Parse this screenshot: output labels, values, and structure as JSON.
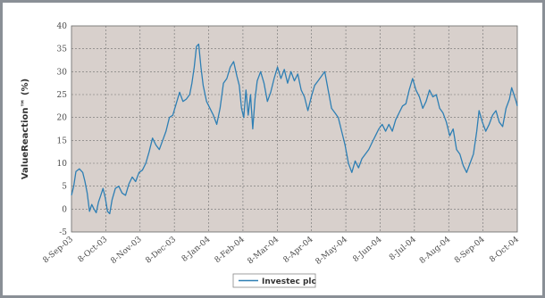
{
  "chart_data": {
    "type": "line",
    "ylabel": "ValueReaction™ (%)",
    "xlabel": "",
    "ylim": [
      -5,
      40
    ],
    "yticks": [
      -5,
      0,
      5,
      10,
      15,
      20,
      25,
      30,
      35,
      40
    ],
    "xlim": [
      "2003-09-08",
      "2004-10-08"
    ],
    "xtick_labels": [
      "8-Sep-03",
      "8-Oct-03",
      "8-Nov-03",
      "8-Dec-03",
      "8-Jan-04",
      "8-Feb-04",
      "8-Mar-04",
      "8-Apr-04",
      "8-May-04",
      "8-Jun-04",
      "8-Jul-04",
      "8-Aug-04",
      "8-Sep-04",
      "8-Oct-04"
    ],
    "grid": true,
    "plot_background": "#d8d0cc",
    "legend_position": "bottom-center",
    "series": [
      {
        "name": "Investec plc",
        "color": "#2e7fb4",
        "points": [
          [
            "2003-09-08",
            3.0
          ],
          [
            "2003-09-10",
            5.0
          ],
          [
            "2003-09-12",
            8.2
          ],
          [
            "2003-09-15",
            8.8
          ],
          [
            "2003-09-18",
            8.0
          ],
          [
            "2003-09-20",
            6.0
          ],
          [
            "2003-09-22",
            3.5
          ],
          [
            "2003-09-24",
            -0.5
          ],
          [
            "2003-09-26",
            1.0
          ],
          [
            "2003-09-28",
            0.0
          ],
          [
            "2003-09-30",
            -0.8
          ],
          [
            "2003-10-02",
            1.5
          ],
          [
            "2003-10-04",
            3.0
          ],
          [
            "2003-10-06",
            4.5
          ],
          [
            "2003-10-08",
            2.5
          ],
          [
            "2003-10-10",
            -0.5
          ],
          [
            "2003-10-12",
            -1.0
          ],
          [
            "2003-10-14",
            2.0
          ],
          [
            "2003-10-17",
            4.5
          ],
          [
            "2003-10-20",
            5.0
          ],
          [
            "2003-10-23",
            3.5
          ],
          [
            "2003-10-26",
            3.0
          ],
          [
            "2003-10-29",
            5.5
          ],
          [
            "2003-11-01",
            7.0
          ],
          [
            "2003-11-04",
            6.0
          ],
          [
            "2003-11-07",
            8.0
          ],
          [
            "2003-11-10",
            8.5
          ],
          [
            "2003-11-13",
            10.0
          ],
          [
            "2003-11-16",
            12.5
          ],
          [
            "2003-11-19",
            15.5
          ],
          [
            "2003-11-22",
            14.0
          ],
          [
            "2003-11-25",
            13.0
          ],
          [
            "2003-11-28",
            15.0
          ],
          [
            "2003-12-01",
            17.0
          ],
          [
            "2003-12-04",
            20.0
          ],
          [
            "2003-12-07",
            20.5
          ],
          [
            "2003-12-10",
            23.0
          ],
          [
            "2003-12-13",
            25.5
          ],
          [
            "2003-12-16",
            23.5
          ],
          [
            "2003-12-19",
            24.0
          ],
          [
            "2003-12-22",
            25.0
          ],
          [
            "2003-12-24",
            27.5
          ],
          [
            "2003-12-26",
            31.0
          ],
          [
            "2003-12-28",
            35.5
          ],
          [
            "2003-12-30",
            36.0
          ],
          [
            "2004-01-01",
            31.0
          ],
          [
            "2004-01-03",
            27.0
          ],
          [
            "2004-01-06",
            23.5
          ],
          [
            "2004-01-09",
            22.0
          ],
          [
            "2004-01-12",
            20.5
          ],
          [
            "2004-01-15",
            18.5
          ],
          [
            "2004-01-18",
            22.0
          ],
          [
            "2004-01-21",
            27.5
          ],
          [
            "2004-01-24",
            28.5
          ],
          [
            "2004-01-27",
            31.0
          ],
          [
            "2004-01-30",
            32.2
          ],
          [
            "2004-02-02",
            29.0
          ],
          [
            "2004-02-04",
            27.0
          ],
          [
            "2004-02-06",
            22.0
          ],
          [
            "2004-02-08",
            20.0
          ],
          [
            "2004-02-10",
            26.0
          ],
          [
            "2004-02-12",
            20.5
          ],
          [
            "2004-02-14",
            25.0
          ],
          [
            "2004-02-16",
            17.5
          ],
          [
            "2004-02-18",
            24.0
          ],
          [
            "2004-02-20",
            28.0
          ],
          [
            "2004-02-23",
            30.0
          ],
          [
            "2004-02-26",
            27.5
          ],
          [
            "2004-02-29",
            23.5
          ],
          [
            "2004-03-03",
            25.5
          ],
          [
            "2004-03-06",
            28.5
          ],
          [
            "2004-03-09",
            31.0
          ],
          [
            "2004-03-12",
            28.5
          ],
          [
            "2004-03-15",
            30.5
          ],
          [
            "2004-03-18",
            27.5
          ],
          [
            "2004-03-21",
            30.0
          ],
          [
            "2004-03-24",
            28.0
          ],
          [
            "2004-03-27",
            29.5
          ],
          [
            "2004-03-30",
            26.0
          ],
          [
            "2004-04-02",
            24.5
          ],
          [
            "2004-04-05",
            21.5
          ],
          [
            "2004-04-08",
            24.5
          ],
          [
            "2004-04-11",
            27.0
          ],
          [
            "2004-04-14",
            28.0
          ],
          [
            "2004-04-17",
            29.0
          ],
          [
            "2004-04-20",
            30.0
          ],
          [
            "2004-04-23",
            26.0
          ],
          [
            "2004-04-26",
            22.0
          ],
          [
            "2004-04-29",
            21.0
          ],
          [
            "2004-05-02",
            20.0
          ],
          [
            "2004-05-05",
            17.0
          ],
          [
            "2004-05-08",
            14.0
          ],
          [
            "2004-05-11",
            10.0
          ],
          [
            "2004-05-14",
            8.0
          ],
          [
            "2004-05-17",
            10.5
          ],
          [
            "2004-05-20",
            9.0
          ],
          [
            "2004-05-23",
            11.0
          ],
          [
            "2004-05-26",
            12.0
          ],
          [
            "2004-05-29",
            13.0
          ],
          [
            "2004-06-01",
            14.5
          ],
          [
            "2004-06-04",
            16.0
          ],
          [
            "2004-06-07",
            17.5
          ],
          [
            "2004-06-10",
            18.5
          ],
          [
            "2004-06-13",
            17.0
          ],
          [
            "2004-06-16",
            18.5
          ],
          [
            "2004-06-19",
            17.0
          ],
          [
            "2004-06-22",
            19.5
          ],
          [
            "2004-06-25",
            21.0
          ],
          [
            "2004-06-28",
            22.5
          ],
          [
            "2004-07-01",
            23.0
          ],
          [
            "2004-07-04",
            26.0
          ],
          [
            "2004-07-07",
            28.5
          ],
          [
            "2004-07-10",
            26.0
          ],
          [
            "2004-07-13",
            24.5
          ],
          [
            "2004-07-16",
            22.0
          ],
          [
            "2004-07-19",
            23.5
          ],
          [
            "2004-07-22",
            26.0
          ],
          [
            "2004-07-25",
            24.5
          ],
          [
            "2004-07-28",
            25.0
          ],
          [
            "2004-07-31",
            22.0
          ],
          [
            "2004-08-03",
            21.0
          ],
          [
            "2004-08-06",
            19.0
          ],
          [
            "2004-08-09",
            16.0
          ],
          [
            "2004-08-12",
            17.5
          ],
          [
            "2004-08-15",
            13.0
          ],
          [
            "2004-08-18",
            12.0
          ],
          [
            "2004-08-21",
            9.5
          ],
          [
            "2004-08-24",
            8.0
          ],
          [
            "2004-08-27",
            10.0
          ],
          [
            "2004-08-30",
            12.0
          ],
          [
            "2004-09-02",
            17.0
          ],
          [
            "2004-09-04",
            21.5
          ],
          [
            "2004-09-07",
            19.0
          ],
          [
            "2004-09-10",
            17.0
          ],
          [
            "2004-09-13",
            18.5
          ],
          [
            "2004-09-16",
            20.5
          ],
          [
            "2004-09-19",
            21.5
          ],
          [
            "2004-09-22",
            19.0
          ],
          [
            "2004-09-25",
            18.0
          ],
          [
            "2004-09-28",
            22.0
          ],
          [
            "2004-10-01",
            24.0
          ],
          [
            "2004-10-03",
            26.5
          ],
          [
            "2004-10-05",
            25.0
          ],
          [
            "2004-10-07",
            23.5
          ],
          [
            "2004-10-08",
            22.5
          ]
        ]
      }
    ]
  }
}
